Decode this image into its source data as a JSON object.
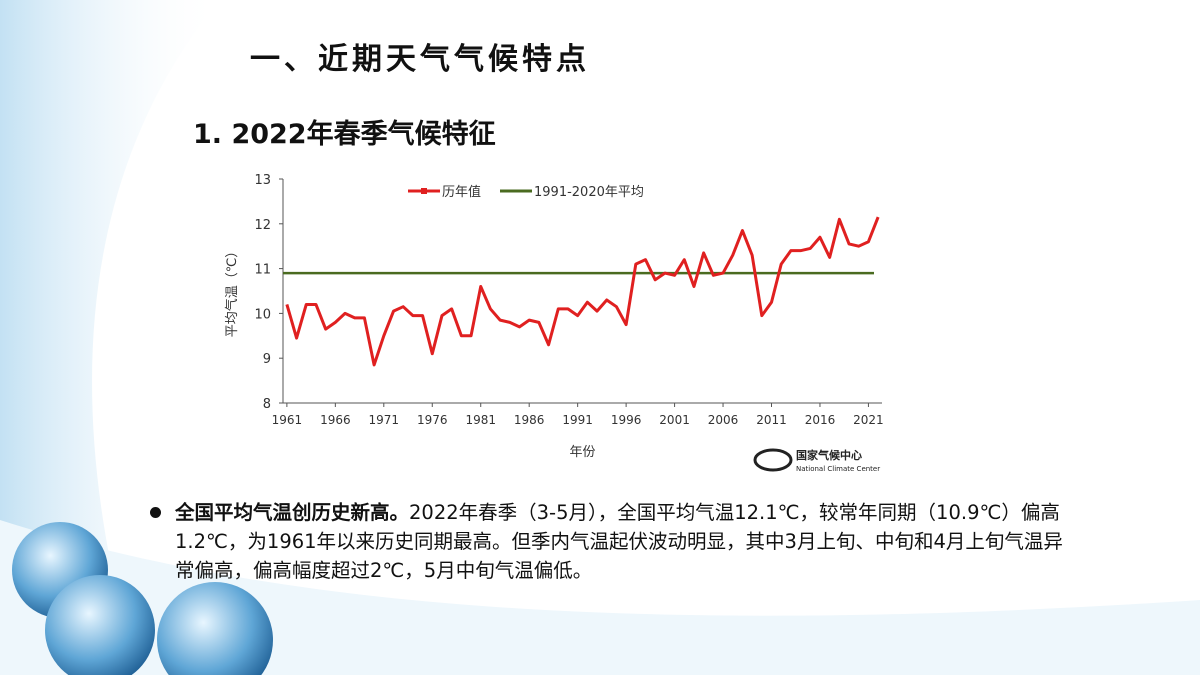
{
  "header": {
    "title": "一、近期天气气候特点",
    "subtitle": "1. 2022年春季气候特征"
  },
  "chart_data": {
    "type": "line",
    "y_label": "平均气温（℃）",
    "x_label": "年份",
    "x": [
      1961,
      1962,
      1963,
      1964,
      1965,
      1966,
      1967,
      1968,
      1969,
      1970,
      1971,
      1972,
      1973,
      1974,
      1975,
      1976,
      1977,
      1978,
      1979,
      1980,
      1981,
      1982,
      1983,
      1984,
      1985,
      1986,
      1987,
      1988,
      1989,
      1990,
      1991,
      1992,
      1993,
      1994,
      1995,
      1996,
      1997,
      1998,
      1999,
      2000,
      2001,
      2002,
      2003,
      2004,
      2005,
      2006,
      2007,
      2008,
      2009,
      2010,
      2011,
      2012,
      2013,
      2014,
      2015,
      2016,
      2017,
      2018,
      2019,
      2020,
      2021,
      2022
    ],
    "series": [
      {
        "name": "历年值",
        "color": "#e02020",
        "values": [
          10.2,
          9.45,
          10.2,
          10.2,
          9.65,
          9.8,
          10.0,
          9.9,
          9.9,
          8.85,
          9.5,
          10.05,
          10.15,
          9.95,
          9.95,
          9.1,
          9.95,
          10.1,
          9.5,
          9.5,
          10.6,
          10.1,
          9.85,
          9.8,
          9.7,
          9.85,
          9.8,
          9.3,
          10.1,
          10.1,
          9.95,
          10.25,
          10.05,
          10.3,
          10.15,
          9.75,
          11.1,
          11.2,
          10.75,
          10.9,
          10.85,
          11.2,
          10.6,
          11.35,
          10.85,
          10.9,
          11.3,
          11.85,
          11.3,
          9.95,
          10.25,
          11.1,
          11.4,
          11.4,
          11.45,
          11.7,
          11.25,
          12.1,
          11.55,
          11.5,
          11.6,
          12.15
        ]
      }
    ],
    "reference_line": {
      "name": "1991-2020年平均",
      "color": "#4a6b20",
      "value": 10.9
    },
    "xlim": [
      1960.6,
      2022.4
    ],
    "ylim": [
      8,
      13
    ],
    "xticks": [
      1961,
      1966,
      1971,
      1976,
      1981,
      1986,
      1991,
      1996,
      2001,
      2006,
      2011,
      2016,
      2021
    ],
    "yticks": [
      8,
      9,
      10,
      11,
      12,
      13
    ],
    "legend": "top"
  },
  "logo": {
    "name": "国家气候中心",
    "name_en": "National Climate Center"
  },
  "bullet": {
    "lead": "全国平均气温创历史新高。",
    "text": "2022年春季（3-5月），全国平均气温12.1℃，较常年同期（10.9℃）偏高1.2℃，为1961年以来历史同期最高。但季内气温起伏波动明显，其中3月上旬、中旬和4月上旬气温异常偏高，偏高幅度超过2℃，5月中旬气温偏低。"
  }
}
